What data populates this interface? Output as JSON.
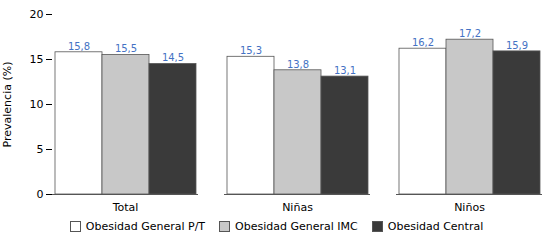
{
  "chart_data": {
    "type": "bar",
    "categories": [
      "Total",
      "Niñas",
      "Niños"
    ],
    "series": [
      {
        "name": "Obesidad General P/T",
        "color": "#ffffff",
        "values": [
          15.8,
          15.3,
          16.2
        ],
        "value_labels": [
          "15,8",
          "15,3",
          "16,2"
        ]
      },
      {
        "name": "Obesidad General IMC",
        "color": "#c8c8c8",
        "values": [
          15.5,
          13.8,
          17.2
        ],
        "value_labels": [
          "15,5",
          "13,8",
          "17,2"
        ]
      },
      {
        "name": "Obesidad Central",
        "color": "#3a3a3a",
        "values": [
          14.5,
          13.1,
          15.9
        ],
        "value_labels": [
          "14,5",
          "13,1",
          "15,9"
        ]
      }
    ],
    "ylabel": "Prevalencia (%)",
    "ylim": [
      0,
      20
    ],
    "yticks": [
      0,
      5,
      10,
      15,
      20
    ],
    "grid": false,
    "legend": "bottom",
    "data_labels": true
  }
}
